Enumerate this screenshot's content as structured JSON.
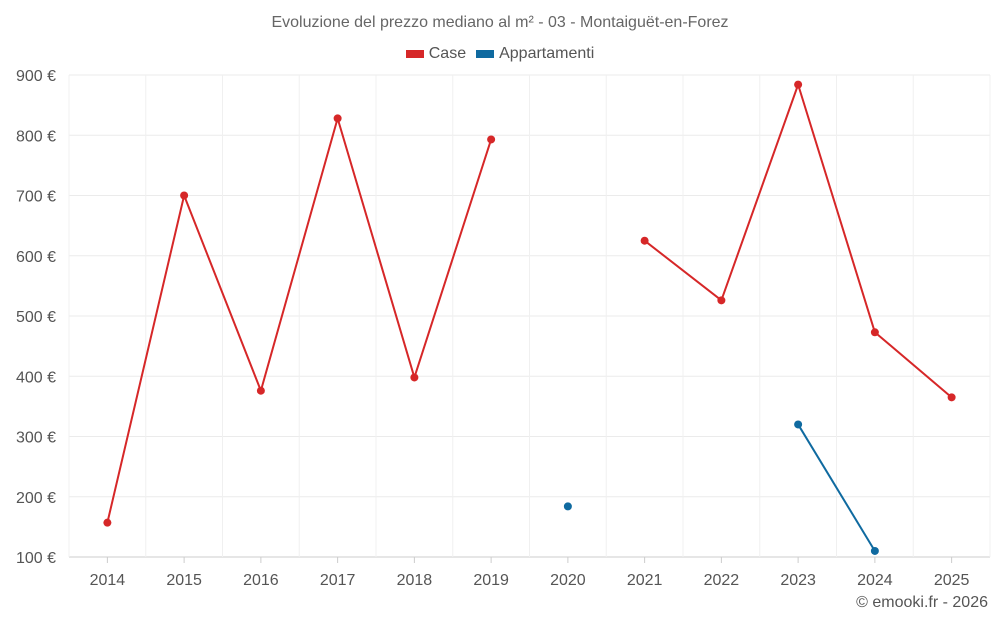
{
  "chart_data": {
    "type": "line",
    "title": "Evoluzione del prezzo mediano al m² - 03 - Montaiguët-en-Forez",
    "categories": [
      "2014",
      "2015",
      "2016",
      "2017",
      "2018",
      "2019",
      "2020",
      "2021",
      "2022",
      "2023",
      "2024",
      "2025"
    ],
    "y_tick_labels": [
      "100 €",
      "200 €",
      "300 €",
      "400 €",
      "500 €",
      "600 €",
      "700 €",
      "800 €",
      "900 €"
    ],
    "y_ticks": [
      100,
      200,
      300,
      400,
      500,
      600,
      700,
      800,
      900
    ],
    "ylim": [
      100,
      900
    ],
    "grid": true,
    "legend_position": "top-center",
    "series": [
      {
        "name": "Case",
        "color": "#d62728",
        "values": [
          157,
          700,
          376,
          828,
          398,
          793,
          null,
          625,
          526,
          884,
          473,
          365
        ]
      },
      {
        "name": "Appartamenti",
        "color": "#0f6aa0",
        "values": [
          null,
          null,
          null,
          null,
          null,
          null,
          184,
          null,
          null,
          320,
          110,
          null
        ]
      }
    ]
  },
  "credit": "© emooki.fr - 2026"
}
